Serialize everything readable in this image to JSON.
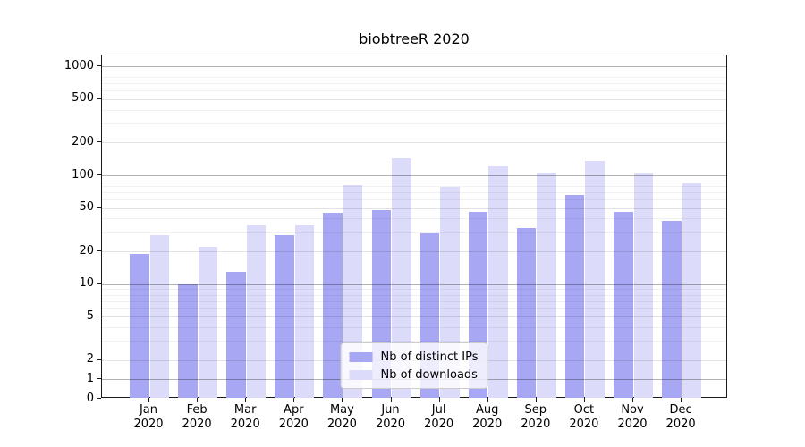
{
  "chart_data": {
    "type": "bar",
    "title": "biobtreeR 2020",
    "year_label": "2020",
    "categories": [
      "Jan",
      "Feb",
      "Mar",
      "Apr",
      "May",
      "Jun",
      "Jul",
      "Aug",
      "Sep",
      "Oct",
      "Nov",
      "Dec"
    ],
    "series": [
      {
        "name": "Nb of distinct IPs",
        "color": "#a7a7f3",
        "values": [
          19,
          10,
          13,
          28,
          45,
          48,
          29,
          46,
          33,
          66,
          46,
          38
        ]
      },
      {
        "name": "Nb of downloads",
        "color": "#dcdcfa",
        "values": [
          28,
          22,
          35,
          35,
          81,
          144,
          78,
          120,
          106,
          135,
          104,
          84
        ]
      }
    ],
    "xlabel": "",
    "ylabel": "",
    "y_ticks": [
      0,
      1,
      2,
      5,
      10,
      20,
      50,
      100,
      200,
      500,
      1000
    ],
    "y_scale": "symlog",
    "ylim": [
      0,
      1260
    ],
    "grid": true,
    "legend_position": "lower center"
  }
}
